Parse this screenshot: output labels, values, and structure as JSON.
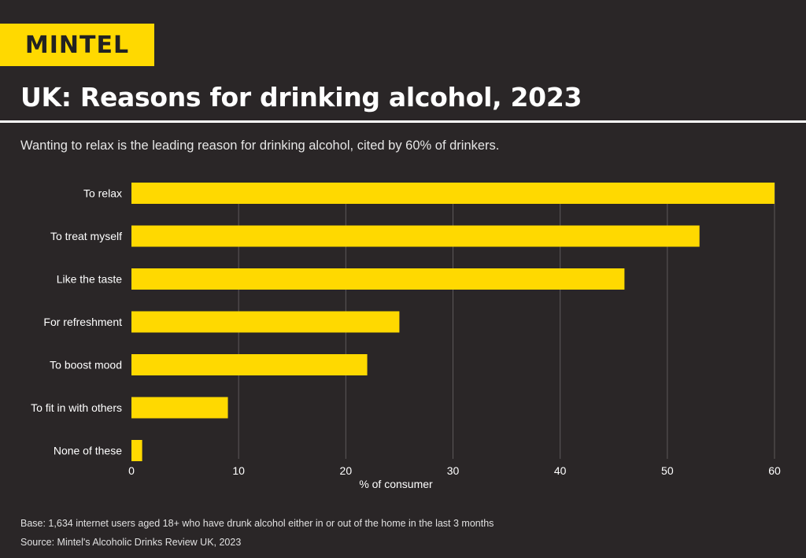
{
  "brand": {
    "name": "MINTEL",
    "color": "#ffd900"
  },
  "header": {
    "title": "UK: Reasons for drinking alcohol, 2023",
    "subtitle": "Wanting to relax is the leading reason for drinking alcohol, cited by 60% of drinkers."
  },
  "chart_data": {
    "type": "bar",
    "orientation": "horizontal",
    "title": "UK: Reasons for drinking alcohol, 2023",
    "categories": [
      "To relax",
      "To treat myself",
      "Like the taste",
      "For refreshment",
      "To boost mood",
      "To fit in with others",
      "None of these"
    ],
    "values": [
      60,
      53,
      46,
      25,
      22,
      9,
      1
    ],
    "xlabel": "% of consumer",
    "ylabel": "",
    "xlim": [
      0,
      60
    ],
    "xticks": [
      0,
      10,
      20,
      30,
      40,
      50,
      60
    ],
    "grid": true,
    "bar_color": "#ffd900"
  },
  "footer": {
    "base": "Base: 1,634 internet users aged 18+ who have drunk alcohol either in or out of the home in the last 3 months",
    "source": "Source: Mintel's Alcoholic Drinks Review UK, 2023"
  }
}
